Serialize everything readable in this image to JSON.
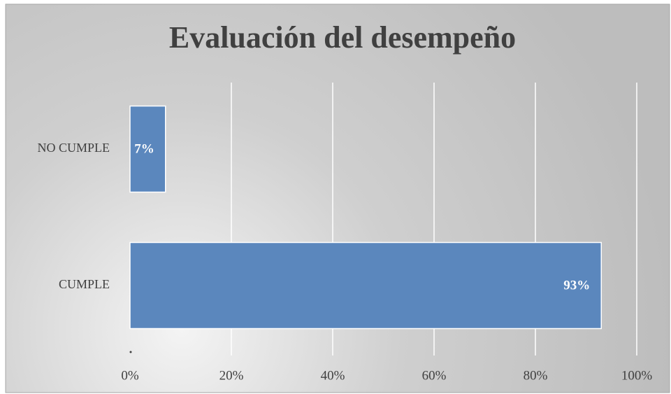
{
  "chart_data": {
    "type": "bar",
    "orientation": "horizontal",
    "title": "Evaluación del desempeño",
    "categories": [
      "NO CUMPLE",
      "CUMPLE"
    ],
    "values": [
      7,
      93
    ],
    "value_labels": [
      "7%",
      "93%"
    ],
    "color": "#5b87bd",
    "xlim": [
      0,
      100
    ],
    "xticks": [
      {
        "value": 0,
        "label": "0%"
      },
      {
        "value": 20,
        "label": "20%"
      },
      {
        "value": 40,
        "label": "40%"
      },
      {
        "value": 60,
        "label": "60%"
      },
      {
        "value": 80,
        "label": "80%"
      },
      {
        "value": 100,
        "label": "100%"
      }
    ],
    "grid": true
  }
}
